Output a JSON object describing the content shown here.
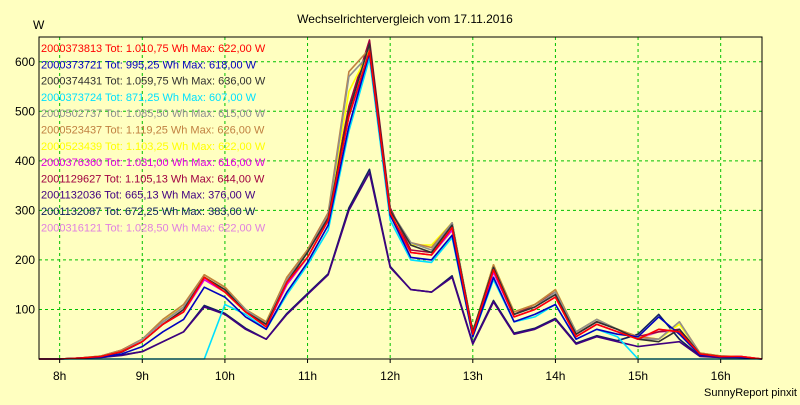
{
  "chart_data": {
    "type": "line",
    "title": "Wechselrichtervergleich vom 17.11.2016",
    "ylabel": "W",
    "xlabel": "",
    "footer": "SunnyReport pinxit",
    "ylim": [
      0,
      650
    ],
    "yticks": [
      100,
      200,
      300,
      400,
      500,
      600
    ],
    "xlim": [
      7.75,
      16.5
    ],
    "xticks": [
      8,
      9,
      10,
      11,
      12,
      13,
      14,
      15,
      16
    ],
    "xtick_labels": [
      "8h",
      "9h",
      "10h",
      "11h",
      "12h",
      "13h",
      "14h",
      "15h",
      "16h"
    ],
    "grid": true,
    "legend_position": "top-left",
    "x": [
      7.75,
      8.0,
      8.25,
      8.5,
      8.75,
      9.0,
      9.25,
      9.5,
      9.75,
      10.0,
      10.25,
      10.5,
      10.75,
      11.0,
      11.25,
      11.5,
      11.75,
      12.0,
      12.25,
      12.5,
      12.75,
      13.0,
      13.25,
      13.5,
      13.75,
      14.0,
      14.25,
      14.5,
      14.75,
      15.0,
      15.25,
      15.5,
      15.75,
      16.0,
      16.25,
      16.5
    ],
    "series": [
      {
        "name": "2000373813 Tot: 1.010,75 Wh Max: 622,00 W",
        "color": "#ff0000",
        "values": [
          0,
          0,
          2,
          5,
          15,
          35,
          70,
          95,
          165,
          135,
          95,
          65,
          155,
          205,
          280,
          490,
          622,
          295,
          215,
          210,
          265,
          50,
          180,
          85,
          100,
          125,
          45,
          70,
          55,
          40,
          60,
          55,
          10,
          5,
          5,
          0
        ]
      },
      {
        "name": "2000373721 Tot: 995,25 Wh Max: 618,00 W",
        "color": "#0000c0",
        "values": [
          0,
          0,
          2,
          4,
          10,
          25,
          55,
          80,
          145,
          125,
          85,
          60,
          135,
          195,
          270,
          470,
          618,
          290,
          205,
          200,
          250,
          45,
          165,
          75,
          90,
          110,
          40,
          60,
          50,
          45,
          85,
          50,
          8,
          5,
          3,
          0
        ]
      },
      {
        "name": "2000374431 Tot: 1.059,75 Wh Max: 636,00 W",
        "color": "#303030",
        "values": [
          0,
          0,
          2,
          5,
          14,
          35,
          70,
          100,
          165,
          140,
          95,
          70,
          155,
          215,
          285,
          500,
          636,
          300,
          230,
          215,
          270,
          55,
          185,
          90,
          105,
          130,
          50,
          75,
          60,
          40,
          35,
          60,
          10,
          5,
          4,
          0
        ]
      },
      {
        "name": "2000373724 Tot: 871,25 Wh Max: 607,00 W",
        "color": "#00e0ff",
        "values": [
          0,
          0,
          0,
          0,
          0,
          0,
          0,
          0,
          0,
          110,
          90,
          60,
          130,
          190,
          260,
          460,
          607,
          280,
          200,
          195,
          245,
          45,
          160,
          75,
          85,
          110,
          40,
          60,
          45,
          0,
          0,
          0,
          0,
          0,
          0,
          0
        ]
      },
      {
        "name": "2000502737 Tot: 1.085,50 Wh Max: 615,00 W",
        "color": "#909090",
        "values": [
          0,
          0,
          2,
          5,
          15,
          40,
          75,
          105,
          165,
          140,
          100,
          70,
          160,
          215,
          290,
          570,
          615,
          300,
          235,
          220,
          275,
          55,
          185,
          90,
          105,
          135,
          55,
          80,
          60,
          40,
          40,
          75,
          10,
          5,
          4,
          0
        ]
      },
      {
        "name": "2000523437 Tot: 1.119,25 Wh Max: 626,00 W",
        "color": "#c08040",
        "values": [
          0,
          0,
          2,
          6,
          18,
          40,
          80,
          110,
          170,
          145,
          100,
          75,
          165,
          220,
          295,
          580,
          626,
          300,
          235,
          225,
          275,
          55,
          190,
          95,
          110,
          140,
          55,
          80,
          60,
          45,
          40,
          75,
          12,
          6,
          4,
          0
        ]
      },
      {
        "name": "2000523439 Tot: 1.103,25 Wh Max: 622,00 W",
        "color": "#ffff00",
        "values": [
          0,
          0,
          2,
          6,
          16,
          40,
          80,
          105,
          170,
          145,
          100,
          75,
          165,
          220,
          290,
          540,
          622,
          300,
          230,
          230,
          275,
          55,
          190,
          95,
          110,
          140,
          55,
          80,
          60,
          45,
          40,
          70,
          12,
          6,
          4,
          0
        ]
      },
      {
        "name": "2000376360 Tot: 1.031,00 Wh Max: 616,00 W",
        "color": "#e000e0",
        "values": [
          0,
          0,
          2,
          5,
          14,
          35,
          70,
          95,
          160,
          135,
          95,
          65,
          150,
          205,
          280,
          490,
          616,
          290,
          215,
          210,
          260,
          50,
          175,
          85,
          100,
          125,
          45,
          70,
          55,
          40,
          60,
          55,
          10,
          5,
          5,
          0
        ]
      },
      {
        "name": "2001129627 Tot: 1.105,13 Wh Max: 644,00 W",
        "color": "#a00040",
        "values": [
          0,
          0,
          2,
          6,
          18,
          40,
          75,
          105,
          170,
          145,
          100,
          70,
          165,
          220,
          295,
          510,
          644,
          305,
          220,
          215,
          275,
          55,
          190,
          90,
          110,
          135,
          50,
          75,
          60,
          45,
          55,
          60,
          12,
          6,
          5,
          0
        ]
      },
      {
        "name": "2001132036 Tot: 665,13 Wh Max: 376,00 W",
        "color": "#400080",
        "values": [
          0,
          0,
          1,
          3,
          7,
          15,
          35,
          55,
          105,
          90,
          60,
          40,
          90,
          130,
          170,
          300,
          376,
          185,
          140,
          135,
          165,
          30,
          115,
          50,
          60,
          80,
          30,
          45,
          35,
          25,
          30,
          35,
          5,
          3,
          2,
          0
        ]
      },
      {
        "name": "2001132087 Tot: 672,25 Wh Max: 383,00 W",
        "color": "#102060",
        "values": [
          0,
          0,
          1,
          3,
          8,
          15,
          35,
          55,
          108,
          92,
          62,
          40,
          92,
          132,
          172,
          305,
          383,
          187,
          140,
          135,
          168,
          32,
          118,
          52,
          62,
          82,
          32,
          47,
          37,
          50,
          90,
          40,
          6,
          3,
          2,
          0
        ]
      },
      {
        "name": "2000316121 Tot: 1.028,50 Wh Max: 622,00 W",
        "color": "#e080e0",
        "values": [
          0,
          0,
          2,
          5,
          14,
          35,
          70,
          95,
          160,
          135,
          95,
          65,
          150,
          205,
          280,
          490,
          622,
          290,
          215,
          210,
          260,
          50,
          175,
          85,
          100,
          125,
          45,
          70,
          55,
          40,
          55,
          55,
          10,
          5,
          5,
          0
        ]
      }
    ]
  }
}
